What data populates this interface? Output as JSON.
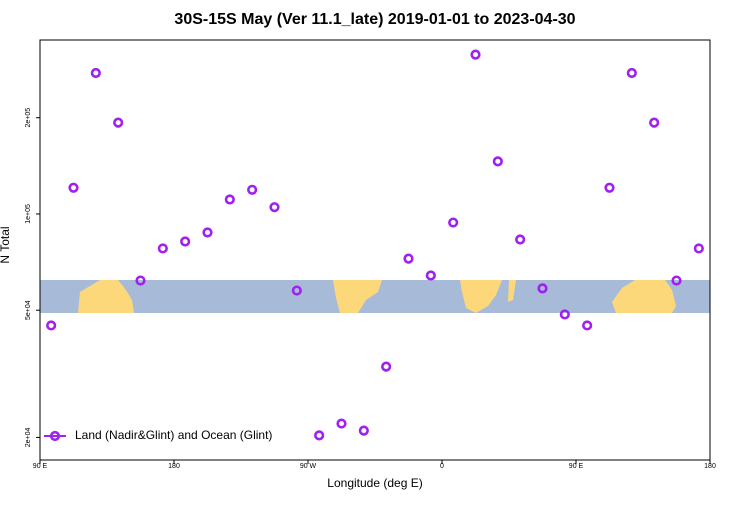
{
  "chart_data": {
    "type": "scatter",
    "title": "30S-15S May (Ver 11.1_late)   2019-01-01 to 2023-04-30",
    "xlabel": "Longitude (deg E)",
    "ylabel": "N Total",
    "xlim": [
      90,
      540
    ],
    "xticks": [
      {
        "value": 90,
        "label": "90 E"
      },
      180,
      {
        "value": 270,
        "label": "90 W"
      },
      {
        "value": 360,
        "label": "0"
      },
      {
        "value": 450,
        "label": "90 E"
      },
      {
        "value": 540,
        "label": "180"
      }
    ],
    "ylim": [
      17000,
      350000
    ],
    "log_y": true,
    "yticks": [
      {
        "value": 20000,
        "label": "2e+04"
      },
      {
        "value": 50000,
        "label": "5e+04"
      },
      {
        "value": 100000,
        "label": "1e+05"
      },
      {
        "value": 200000,
        "label": "2e+05"
      }
    ],
    "legend": "bottom-left",
    "series": [
      {
        "name": "Land (Nadir&Glint) and Ocean (Glint)",
        "color": "#a020f0",
        "x": [
          97.5,
          112.5,
          127.5,
          142.5,
          157.5,
          172.5,
          187.5,
          202.5,
          217.5,
          232.5,
          247.5,
          262.5,
          277.5,
          292.5,
          307.5,
          322.5,
          337.5,
          352.5,
          367.5,
          382.5,
          397.5,
          412.5,
          427.5,
          442.5,
          457.5,
          472.5,
          487.5,
          502.5,
          517.5,
          532.5
        ],
        "values": [
          44800,
          120800,
          276000,
          193000,
          61900,
          78000,
          82000,
          87500,
          111000,
          119000,
          105000,
          57600,
          20300,
          22100,
          21000,
          33300,
          72500,
          64200,
          94000,
          315000,
          146000,
          83200,
          58500,
          48500,
          44800,
          120800,
          276000,
          193000,
          61900,
          78000
        ]
      }
    ]
  }
}
